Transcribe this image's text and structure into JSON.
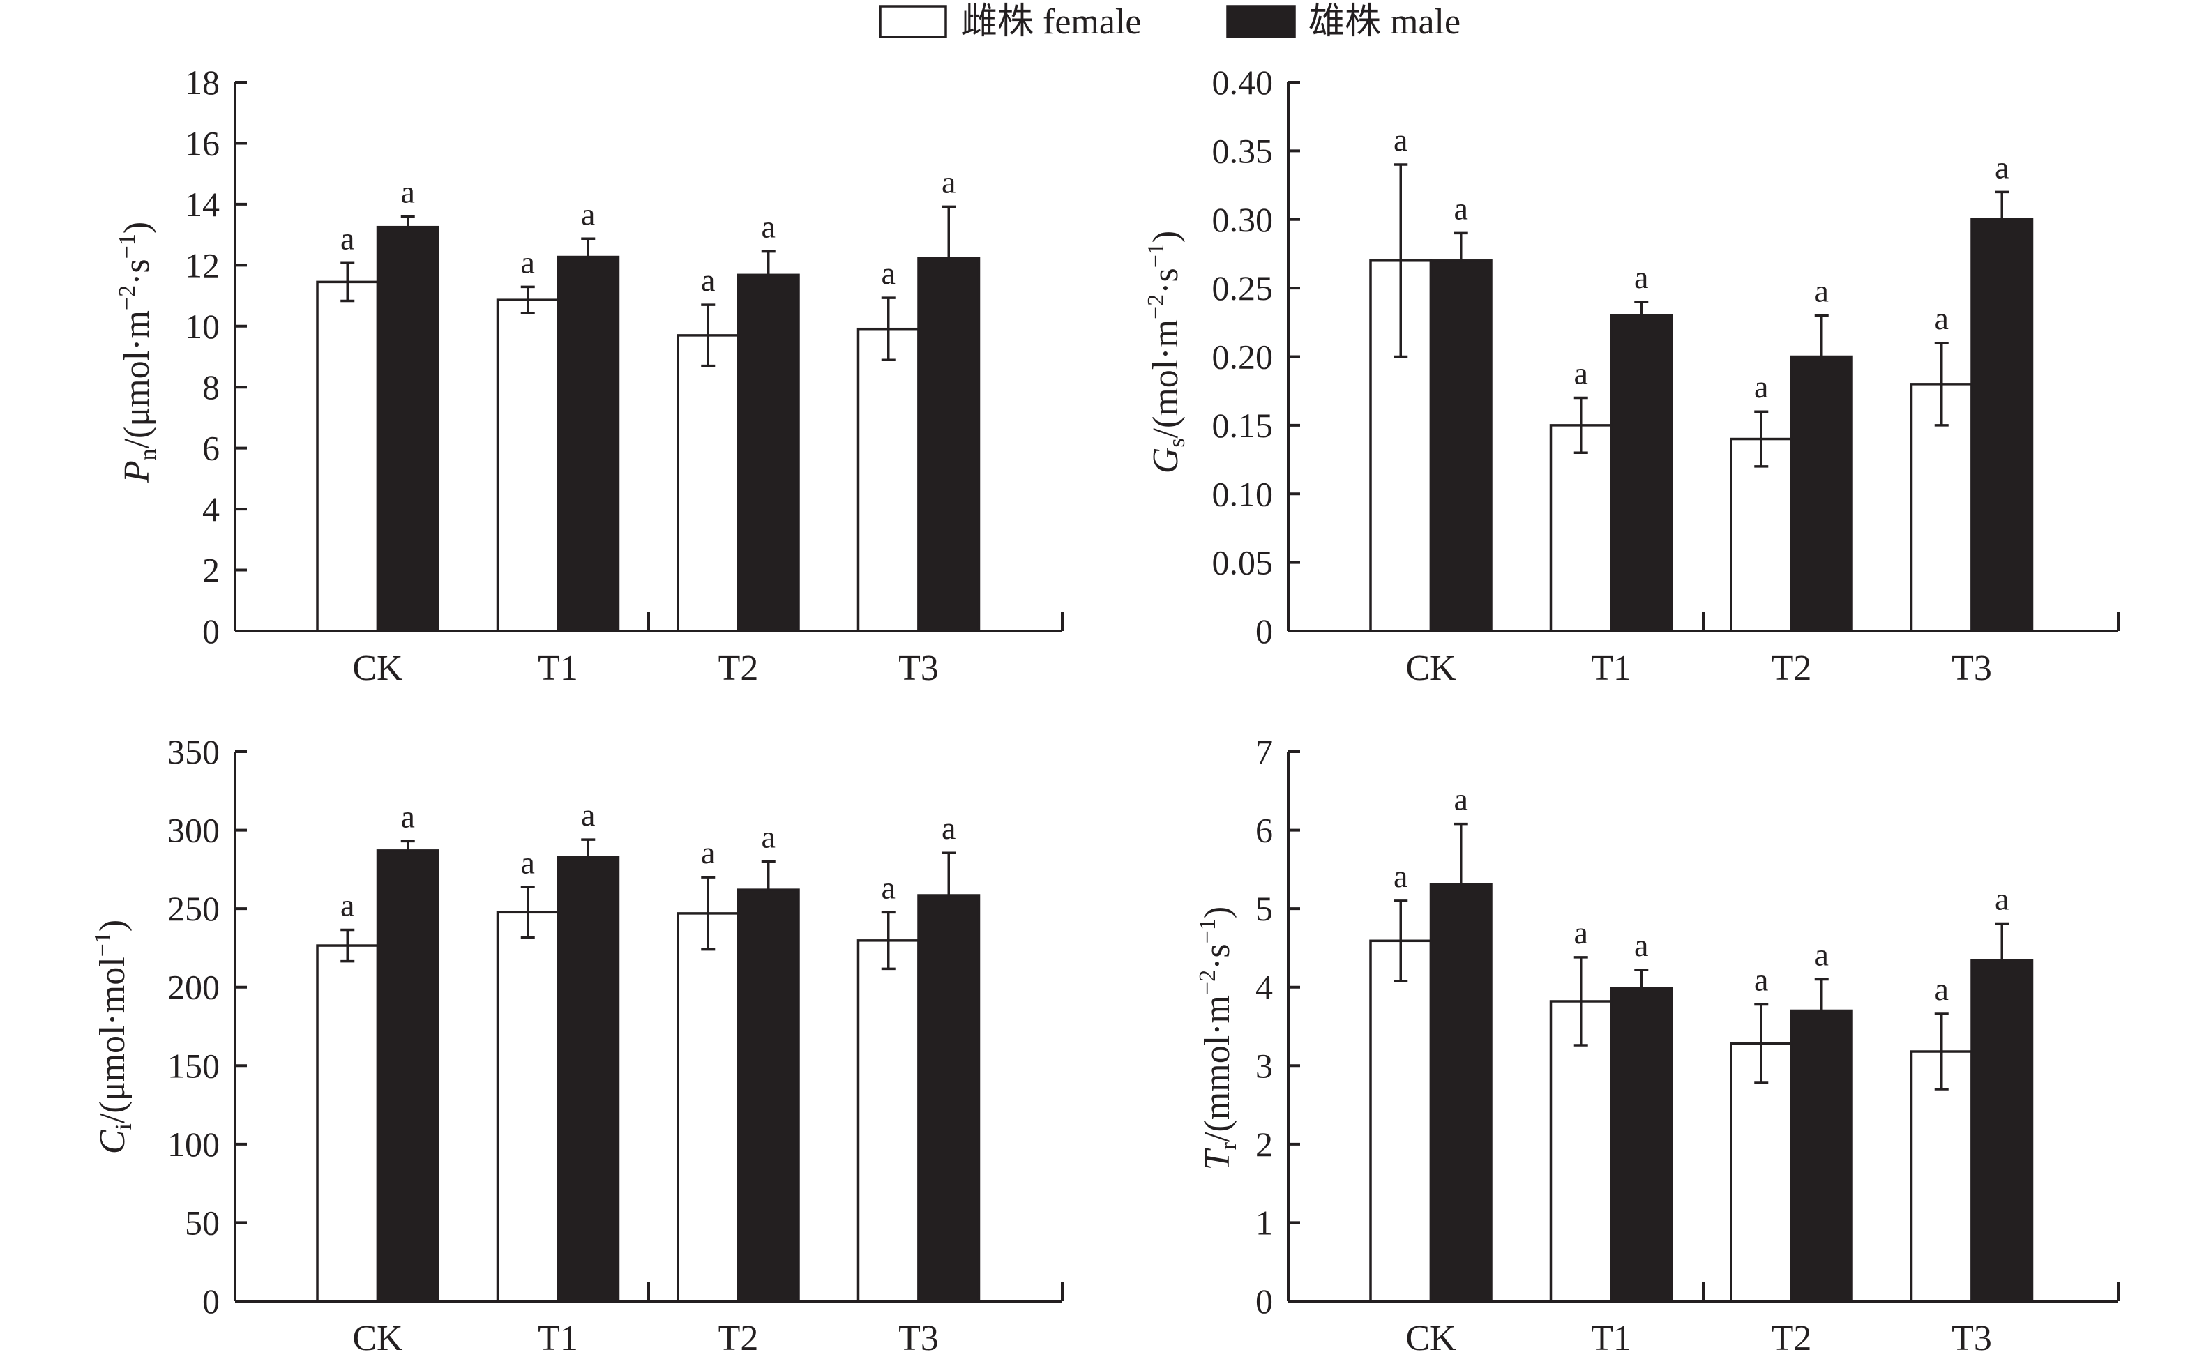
{
  "legend": {
    "items": [
      {
        "label": "雌株 female",
        "fill": "#ffffff",
        "stroke": "#231f20"
      },
      {
        "label": "雄株 male",
        "fill": "#231f20",
        "stroke": "#231f20"
      }
    ]
  },
  "colors": {
    "ink": "#231f20",
    "female": "#ffffff",
    "male": "#231f20"
  },
  "chart_data": [
    {
      "type": "bar",
      "id": "pn",
      "ylabel_segments": [
        {
          "t": "P",
          "s": "italic"
        },
        {
          "t": "n",
          "s": "sub"
        },
        {
          "t": "/(μmol·m",
          "s": "normal"
        },
        {
          "t": "−2",
          "s": "sup"
        },
        {
          "t": "·s",
          "s": "normal"
        },
        {
          "t": "−1",
          "s": "sup"
        },
        {
          "t": ")",
          "s": "normal"
        }
      ],
      "categories": [
        "CK",
        "T1",
        "T2",
        "T3"
      ],
      "ylim": [
        0,
        18
      ],
      "yticks": [
        0,
        2,
        4,
        6,
        8,
        10,
        12,
        14,
        16,
        18
      ],
      "ytick_labels": [
        "0",
        "2",
        "4",
        "6",
        "8",
        "10",
        "12",
        "14",
        "16",
        "18"
      ],
      "series": [
        {
          "name": "雌株 female",
          "values": [
            11.45,
            10.86,
            9.7,
            9.91
          ],
          "errors": [
            0.62,
            0.43,
            1.0,
            1.02
          ],
          "sig": [
            "a",
            "a",
            "a",
            "a"
          ]
        },
        {
          "name": "雄株 male",
          "values": [
            13.25,
            12.27,
            11.68,
            12.24
          ],
          "errors": [
            0.35,
            0.6,
            0.77,
            1.68
          ],
          "sig": [
            "a",
            "a",
            "a",
            "a"
          ]
        }
      ]
    },
    {
      "type": "bar",
      "id": "gs",
      "ylabel_segments": [
        {
          "t": "G",
          "s": "italic"
        },
        {
          "t": "s",
          "s": "sub"
        },
        {
          "t": "/(mol·m",
          "s": "normal"
        },
        {
          "t": "−2",
          "s": "sup"
        },
        {
          "t": "·s",
          "s": "normal"
        },
        {
          "t": "−1",
          "s": "sup"
        },
        {
          "t": ")",
          "s": "normal"
        }
      ],
      "categories": [
        "CK",
        "T1",
        "T2",
        "T3"
      ],
      "ylim": [
        0,
        0.4
      ],
      "yticks": [
        0,
        0.05,
        0.1,
        0.15,
        0.2,
        0.25,
        0.3,
        0.35,
        0.4
      ],
      "ytick_labels": [
        "0",
        "0.05",
        "0.10",
        "0.15",
        "0.20",
        "0.25",
        "0.30",
        "0.35",
        "0.40"
      ],
      "series": [
        {
          "name": "雌株 female",
          "values": [
            0.27,
            0.15,
            0.14,
            0.18
          ],
          "errors": [
            0.07,
            0.02,
            0.02,
            0.03
          ],
          "sig": [
            "a",
            "a",
            "a",
            "a"
          ]
        },
        {
          "name": "雄株 male",
          "values": [
            0.27,
            0.23,
            0.2,
            0.3
          ],
          "errors": [
            0.02,
            0.01,
            0.03,
            0.02
          ],
          "sig": [
            "a",
            "a",
            "a",
            "a"
          ]
        }
      ]
    },
    {
      "type": "bar",
      "id": "ci",
      "ylabel_segments": [
        {
          "t": "C",
          "s": "italic"
        },
        {
          "t": "i",
          "s": "sub"
        },
        {
          "t": "/(μmol·mol",
          "s": "normal"
        },
        {
          "t": "−1",
          "s": "sup"
        },
        {
          "t": ")",
          "s": "normal"
        }
      ],
      "categories": [
        "CK",
        "T1",
        "T2",
        "T3"
      ],
      "ylim": [
        0,
        350
      ],
      "yticks": [
        0,
        50,
        100,
        150,
        200,
        250,
        300,
        350
      ],
      "ytick_labels": [
        "0",
        "50",
        "100",
        "150",
        "200",
        "250",
        "300",
        "350"
      ],
      "series": [
        {
          "name": "雌株 female",
          "values": [
            226.5,
            247.7,
            247,
            229.7
          ],
          "errors": [
            10,
            16,
            23,
            18
          ],
          "sig": [
            "a",
            "a",
            "a",
            "a"
          ]
        },
        {
          "name": "雄株 male",
          "values": [
            287,
            283,
            262,
            258.5
          ],
          "errors": [
            6,
            11,
            18,
            27
          ],
          "sig": [
            "a",
            "a",
            "a",
            "a"
          ]
        }
      ]
    },
    {
      "type": "bar",
      "id": "tr",
      "ylabel_segments": [
        {
          "t": "T",
          "s": "italic"
        },
        {
          "t": "r",
          "s": "sub"
        },
        {
          "t": "/(mmol·m",
          "s": "normal"
        },
        {
          "t": "−2",
          "s": "sup"
        },
        {
          "t": "·s",
          "s": "normal"
        },
        {
          "t": "−1",
          "s": "sup"
        },
        {
          "t": ")",
          "s": "normal"
        }
      ],
      "categories": [
        "CK",
        "T1",
        "T2",
        "T3"
      ],
      "ylim": [
        0,
        7
      ],
      "yticks": [
        0,
        1,
        2,
        3,
        4,
        5,
        6,
        7
      ],
      "ytick_labels": [
        "0",
        "1",
        "2",
        "3",
        "4",
        "5",
        "6",
        "7"
      ],
      "series": [
        {
          "name": "雌株 female",
          "values": [
            4.59,
            3.82,
            3.28,
            3.18
          ],
          "errors": [
            0.51,
            0.56,
            0.5,
            0.48
          ],
          "sig": [
            "a",
            "a",
            "a",
            "a"
          ]
        },
        {
          "name": "雄株 male",
          "values": [
            5.31,
            3.99,
            3.7,
            4.34
          ],
          "errors": [
            0.77,
            0.23,
            0.4,
            0.47
          ],
          "sig": [
            "a",
            "a",
            "a",
            "a"
          ]
        }
      ]
    }
  ]
}
